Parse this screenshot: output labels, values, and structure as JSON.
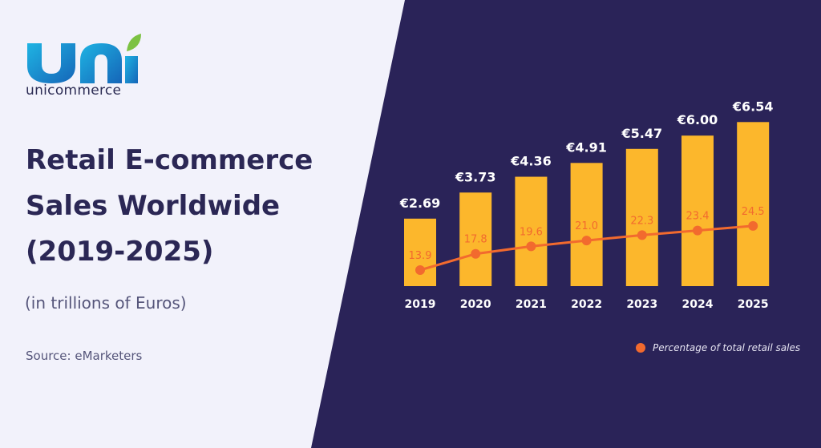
{
  "brand": {
    "logo_text": "unicommerce",
    "colors": {
      "logo_gradient_start": "#1fb4e3",
      "logo_gradient_end": "#1565b8",
      "leaf": "#7cc243"
    }
  },
  "title": {
    "line1": "Retail E-commerce",
    "line2": "Sales Worldwide",
    "line3": "(2019-2025)"
  },
  "subtitle": "(in trillions of Euros)",
  "source": "Source: eMarketers",
  "colors": {
    "light_bg": "#f2f2fb",
    "dark_bg": "#2a2358",
    "bar": "#fcb72c",
    "line": "#f26a2e",
    "title_text": "#2b2755"
  },
  "chart_data": {
    "type": "bar",
    "categories": [
      "2019",
      "2020",
      "2021",
      "2022",
      "2023",
      "2024",
      "2025"
    ],
    "series": [
      {
        "name": "",
        "type": "bar",
        "values": [
          2.69,
          3.73,
          4.36,
          4.91,
          5.47,
          6.0,
          6.54
        ],
        "labels": [
          "€2.69",
          "€3.73",
          "€4.36",
          "€4.91",
          "€5.47",
          "€6.00",
          "€6.54"
        ]
      },
      {
        "name": "Percentage of total retail sales",
        "type": "line",
        "values": [
          13.9,
          17.8,
          19.6,
          21.0,
          22.3,
          23.4,
          24.5
        ],
        "labels": [
          "13.9",
          "17.8",
          "19.6",
          "21.0",
          "22.3",
          "23.4",
          "24.5"
        ]
      }
    ],
    "title": "",
    "xlabel": "",
    "ylabel": "",
    "grid": false,
    "legend_position": "bottom-right"
  },
  "legend": {
    "line_label": "Percentage of total retail sales"
  }
}
